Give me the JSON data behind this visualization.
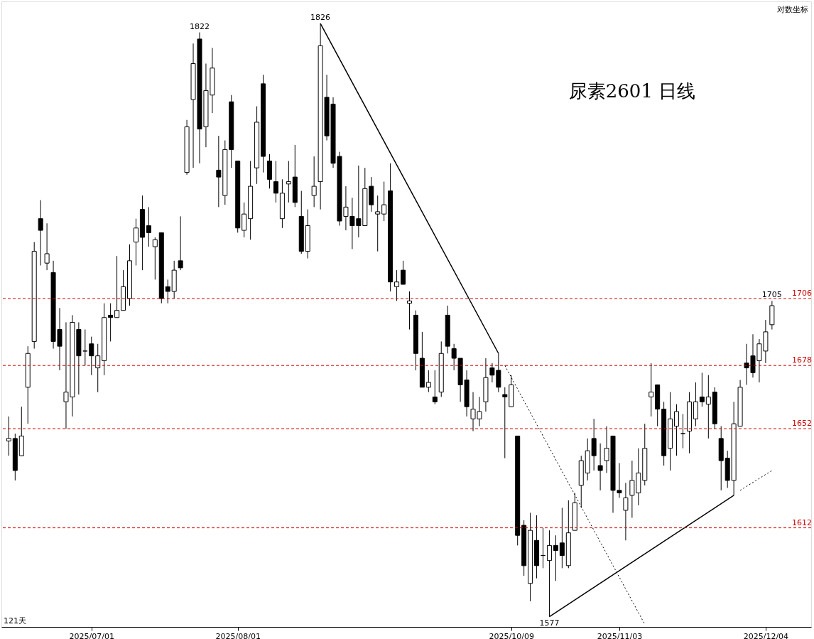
{
  "chart_data": {
    "type": "candlestick",
    "title": "尿素2601  日线",
    "log": true,
    "tick_labels": "x",
    "ylim": [
      1573,
      1836
    ],
    "categories": [
      null,
      null,
      null,
      null,
      null,
      null,
      null,
      null,
      null,
      null,
      null,
      null,
      null,
      "2025/07/01",
      null,
      null,
      null,
      null,
      null,
      null,
      null,
      null,
      null,
      null,
      null,
      null,
      null,
      null,
      null,
      null,
      null,
      null,
      null,
      null,
      null,
      null,
      "2025/08/01",
      null,
      null,
      null,
      null,
      null,
      null,
      null,
      null,
      null,
      null,
      null,
      null,
      null,
      null,
      null,
      null,
      null,
      null,
      null,
      null,
      null,
      null,
      null,
      null,
      null,
      null,
      null,
      null,
      null,
      null,
      null,
      null,
      null,
      null,
      null,
      null,
      null,
      null,
      null,
      null,
      null,
      null,
      "2025/10/09",
      null,
      null,
      null,
      null,
      null,
      null,
      null,
      null,
      null,
      null,
      null,
      null,
      null,
      null,
      null,
      null,
      "2025/11/03",
      null,
      null,
      null,
      null,
      null,
      null,
      null,
      null,
      null,
      null,
      null,
      null,
      null,
      null,
      null,
      null,
      null,
      null,
      null,
      null,
      null,
      null,
      "2025/12/04",
      null
    ],
    "ohlc": [
      [
        1647,
        1657,
        1641,
        1648
      ],
      [
        1648,
        1650,
        1631,
        1635
      ],
      [
        1641,
        1661,
        1641,
        1649
      ],
      [
        1669,
        1686,
        1654,
        1683
      ],
      [
        1688,
        1730,
        1685,
        1726
      ],
      [
        1740,
        1748,
        1720,
        1735
      ],
      [
        1721,
        1738,
        1718,
        1725
      ],
      [
        1717,
        1722,
        1685,
        1688
      ],
      [
        1693,
        1702,
        1676,
        1686
      ],
      [
        1663,
        1696,
        1652,
        1667
      ],
      [
        1665,
        1699,
        1657,
        1696
      ],
      [
        1693,
        1696,
        1666,
        1682
      ],
      [
        1684,
        1693,
        1678,
        1684
      ],
      [
        1687,
        1690,
        1674,
        1682
      ],
      [
        1677,
        1687,
        1667,
        1682
      ],
      [
        1680,
        1704,
        1674,
        1698
      ],
      [
        1699,
        1704,
        1688,
        1698
      ],
      [
        1698,
        1724,
        1698,
        1701
      ],
      [
        1701,
        1718,
        1701,
        1711
      ],
      [
        1706,
        1729,
        1703,
        1722
      ],
      [
        1730,
        1740,
        1720,
        1736
      ],
      [
        1744,
        1750,
        1718,
        1732
      ],
      [
        1737,
        1745,
        1728,
        1734
      ],
      [
        1728,
        1732,
        1714,
        1731
      ],
      [
        1734,
        1734,
        1704,
        1706
      ],
      [
        1711,
        1714,
        1704,
        1709
      ],
      [
        1709,
        1722,
        1706,
        1718
      ],
      [
        1722,
        1741,
        1718,
        1719
      ],
      [
        1760,
        1783,
        1759,
        1780
      ],
      [
        1792,
        1817,
        1762,
        1808
      ],
      [
        1819,
        1822,
        1764,
        1779
      ],
      [
        1780,
        1808,
        1771,
        1796
      ],
      [
        1794,
        1815,
        1786,
        1806
      ],
      [
        1761,
        1776,
        1745,
        1758
      ],
      [
        1750,
        1774,
        1746,
        1770
      ],
      [
        1791,
        1794,
        1762,
        1770
      ],
      [
        1765,
        1765,
        1734,
        1736
      ],
      [
        1735,
        1747,
        1732,
        1742
      ],
      [
        1740,
        1765,
        1731,
        1754
      ],
      [
        1762,
        1789,
        1755,
        1782
      ],
      [
        1799,
        1803,
        1760,
        1767
      ],
      [
        1765,
        1768,
        1753,
        1757
      ],
      [
        1756,
        1765,
        1747,
        1751
      ],
      [
        1740,
        1757,
        1736,
        1751
      ],
      [
        1755,
        1765,
        1747,
        1756
      ],
      [
        1758,
        1772,
        1745,
        1747
      ],
      [
        1741,
        1752,
        1725,
        1726
      ],
      [
        1726,
        1744,
        1723,
        1737
      ],
      [
        1750,
        1767,
        1745,
        1754
      ],
      [
        1756,
        1826,
        1744,
        1816
      ],
      [
        1793,
        1803,
        1774,
        1776
      ],
      [
        1790,
        1793,
        1762,
        1764
      ],
      [
        1767,
        1769,
        1737,
        1739
      ],
      [
        1741,
        1754,
        1735,
        1745
      ],
      [
        1741,
        1749,
        1727,
        1737
      ],
      [
        1740,
        1763,
        1732,
        1737
      ],
      [
        1737,
        1762,
        1737,
        1753
      ],
      [
        1754,
        1758,
        1743,
        1746
      ],
      [
        1742,
        1750,
        1726,
        1743
      ],
      [
        1742,
        1756,
        1739,
        1746
      ],
      [
        1752,
        1764,
        1709,
        1713
      ],
      [
        1711,
        1718,
        1705,
        1713
      ],
      [
        1718,
        1722,
        1712,
        1712
      ],
      [
        1704,
        1709,
        1693,
        1705
      ],
      [
        1699,
        1701,
        1676,
        1683
      ],
      [
        1681,
        1692,
        1669,
        1669
      ],
      [
        1669,
        1676,
        1667,
        1671
      ],
      [
        1665,
        1676,
        1662,
        1663
      ],
      [
        1667,
        1688,
        1665,
        1683
      ],
      [
        1699,
        1703,
        1683,
        1686
      ],
      [
        1685,
        1687,
        1676,
        1681
      ],
      [
        1681,
        1681,
        1663,
        1670
      ],
      [
        1672,
        1676,
        1657,
        1661
      ],
      [
        1656,
        1667,
        1651,
        1660
      ],
      [
        1656,
        1665,
        1653,
        1659
      ],
      [
        1663,
        1681,
        1659,
        1673
      ],
      [
        1677,
        1679,
        1671,
        1674
      ],
      [
        1676,
        1683,
        1667,
        1669
      ],
      [
        1666,
        1669,
        1640,
        1665
      ],
      [
        1661,
        1674,
        1661,
        1670
      ],
      [
        1649,
        1649,
        1605,
        1609
      ],
      [
        1613,
        1615,
        1593,
        1597
      ],
      [
        1590,
        1618,
        1583,
        1611
      ],
      [
        1607,
        1617,
        1592,
        1597
      ],
      [
        1601,
        1612,
        1596,
        1601
      ],
      [
        1599,
        1611,
        1577,
        1605
      ],
      [
        1605,
        1609,
        1591,
        1603
      ],
      [
        1606,
        1620,
        1596,
        1601
      ],
      [
        1597,
        1623,
        1596,
        1610
      ],
      [
        1611,
        1626,
        1611,
        1622
      ],
      [
        1629,
        1641,
        1620,
        1639
      ],
      [
        1634,
        1648,
        1631,
        1643
      ],
      [
        1648,
        1656,
        1635,
        1641
      ],
      [
        1637,
        1646,
        1627,
        1635
      ],
      [
        1639,
        1653,
        1634,
        1644
      ],
      [
        1649,
        1649,
        1618,
        1627
      ],
      [
        1627,
        1638,
        1624,
        1626
      ],
      [
        1619,
        1630,
        1607,
        1624
      ],
      [
        1625,
        1639,
        1616,
        1631
      ],
      [
        1626,
        1644,
        1621,
        1634
      ],
      [
        1631,
        1654,
        1629,
        1644
      ],
      [
        1665,
        1679,
        1657,
        1667
      ],
      [
        1670,
        1670,
        1653,
        1660
      ],
      [
        1660,
        1663,
        1637,
        1641
      ],
      [
        1644,
        1667,
        1635,
        1656
      ],
      [
        1653,
        1662,
        1641,
        1659
      ],
      [
        1650,
        1658,
        1644,
        1650
      ],
      [
        1651,
        1667,
        1642,
        1663
      ],
      [
        1656,
        1671,
        1653,
        1663
      ],
      [
        1665,
        1675,
        1661,
        1663
      ],
      [
        1662,
        1674,
        1648,
        1665
      ],
      [
        1667,
        1669,
        1652,
        1654
      ],
      [
        1648,
        1653,
        1627,
        1639
      ],
      [
        1640,
        1643,
        1628,
        1631
      ],
      [
        1631,
        1663,
        1625,
        1654
      ],
      [
        1653,
        1672,
        1653,
        1669
      ],
      [
        1679,
        1687,
        1670,
        1677
      ],
      [
        1682,
        1691,
        1673,
        1675
      ],
      [
        1680,
        1689,
        1671,
        1687
      ],
      [
        1684,
        1697,
        1679,
        1692
      ],
      [
        1695,
        1705,
        1693,
        1703
      ]
    ],
    "series": [
      {
        "type": "line",
        "color": "#000000",
        "line_style": "solid",
        "values": [
          null,
          null,
          null,
          null,
          null,
          null,
          null,
          null,
          null,
          null,
          null,
          null,
          null,
          null,
          null,
          null,
          null,
          null,
          null,
          null,
          null,
          null,
          null,
          null,
          null,
          null,
          null,
          null,
          null,
          null,
          null,
          null,
          null,
          null,
          null,
          null,
          null,
          null,
          null,
          null,
          null,
          null,
          null,
          null,
          null,
          null,
          null,
          null,
          null,
          1826,
          null,
          null,
          null,
          null,
          null,
          null,
          null,
          null,
          null,
          null,
          null,
          null,
          null,
          null,
          null,
          null,
          null,
          null,
          null,
          null,
          null,
          null,
          null,
          null,
          null,
          null,
          null,
          1683,
          null,
          null,
          null,
          null,
          null,
          null,
          null,
          null,
          null,
          null,
          null,
          null,
          null,
          null,
          null,
          null,
          null,
          null,
          null,
          null,
          null,
          null,
          null,
          null,
          null,
          null,
          null,
          null,
          null,
          null,
          null,
          null,
          null,
          null,
          null,
          null,
          null,
          null,
          null,
          null,
          null,
          null,
          null
        ]
      },
      {
        "type": "line",
        "color": "#000000",
        "line_style": "dotted",
        "values": [
          null,
          null,
          null,
          null,
          null,
          null,
          null,
          null,
          null,
          null,
          null,
          null,
          null,
          null,
          null,
          null,
          null,
          null,
          null,
          null,
          null,
          null,
          null,
          null,
          null,
          null,
          null,
          null,
          null,
          null,
          null,
          null,
          null,
          null,
          null,
          null,
          null,
          null,
          null,
          null,
          null,
          null,
          null,
          null,
          null,
          null,
          null,
          null,
          null,
          null,
          null,
          null,
          null,
          null,
          null,
          null,
          null,
          null,
          null,
          null,
          null,
          null,
          null,
          null,
          null,
          null,
          null,
          null,
          null,
          null,
          null,
          null,
          null,
          null,
          null,
          null,
          null,
          null,
          1678,
          null,
          null,
          null,
          null,
          null,
          null,
          null,
          null,
          null,
          null,
          null,
          null,
          null,
          null,
          null,
          null,
          null,
          null,
          null,
          null,
          null,
          1574,
          null,
          null,
          null,
          null,
          null,
          null,
          null,
          null,
          null,
          null,
          null,
          null,
          null,
          null,
          null,
          null,
          null,
          null,
          null,
          null
        ]
      },
      {
        "type": "line",
        "color": "#000000",
        "line_style": "solid",
        "values": [
          null,
          null,
          null,
          null,
          null,
          null,
          null,
          null,
          null,
          null,
          null,
          null,
          null,
          null,
          null,
          null,
          null,
          null,
          null,
          null,
          null,
          null,
          null,
          null,
          null,
          null,
          null,
          null,
          null,
          null,
          null,
          null,
          null,
          null,
          null,
          null,
          null,
          null,
          null,
          null,
          null,
          null,
          null,
          null,
          null,
          null,
          null,
          null,
          null,
          null,
          null,
          null,
          null,
          null,
          null,
          null,
          null,
          null,
          null,
          null,
          null,
          null,
          null,
          null,
          null,
          null,
          null,
          null,
          null,
          null,
          null,
          null,
          null,
          null,
          null,
          null,
          null,
          null,
          null,
          null,
          null,
          null,
          null,
          null,
          null,
          1577,
          null,
          null,
          null,
          null,
          null,
          null,
          null,
          null,
          null,
          null,
          null,
          null,
          null,
          null,
          null,
          null,
          null,
          null,
          null,
          null,
          null,
          null,
          null,
          null,
          null,
          null,
          null,
          null,
          1625,
          null,
          null,
          null,
          null,
          null,
          null
        ]
      },
      {
        "type": "line",
        "color": "#000000",
        "line_style": "dotted",
        "values": [
          null,
          null,
          null,
          null,
          null,
          null,
          null,
          null,
          null,
          null,
          null,
          null,
          null,
          null,
          null,
          null,
          null,
          null,
          null,
          null,
          null,
          null,
          null,
          null,
          null,
          null,
          null,
          null,
          null,
          null,
          null,
          null,
          null,
          null,
          null,
          null,
          null,
          null,
          null,
          null,
          null,
          null,
          null,
          null,
          null,
          null,
          null,
          null,
          null,
          null,
          null,
          null,
          null,
          null,
          null,
          null,
          null,
          null,
          null,
          null,
          null,
          null,
          null,
          null,
          null,
          null,
          null,
          null,
          null,
          null,
          null,
          null,
          null,
          null,
          null,
          null,
          null,
          null,
          null,
          null,
          null,
          null,
          null,
          null,
          null,
          null,
          null,
          null,
          null,
          null,
          null,
          null,
          null,
          null,
          null,
          null,
          null,
          null,
          null,
          null,
          null,
          null,
          null,
          null,
          null,
          null,
          null,
          null,
          null,
          null,
          null,
          null,
          null,
          null,
          null,
          1627,
          null,
          null,
          null,
          null,
          1635
        ]
      }
    ],
    "ref_lines": [
      {
        "axis": "y",
        "value": 1706,
        "label": "1706",
        "color": "#cc0000",
        "line_style": "dashed"
      },
      {
        "axis": "y",
        "value": 1678,
        "label": "1678",
        "color": "#cc0000",
        "line_style": "dashed"
      },
      {
        "axis": "y",
        "value": 1652,
        "label": "1652",
        "color": "#cc0000",
        "line_style": "dashed"
      },
      {
        "axis": "y",
        "value": 1612,
        "label": "1612",
        "color": "#cc0000",
        "line_style": "dashed"
      }
    ],
    "annotations": [
      "121天",
      "对数坐标",
      {
        "text": "1822",
        "y": 1822
      },
      {
        "text": "1826",
        "y": 1826
      },
      {
        "text": "1705",
        "y": 1705
      },
      {
        "text": "1577",
        "y": 1577
      }
    ]
  }
}
